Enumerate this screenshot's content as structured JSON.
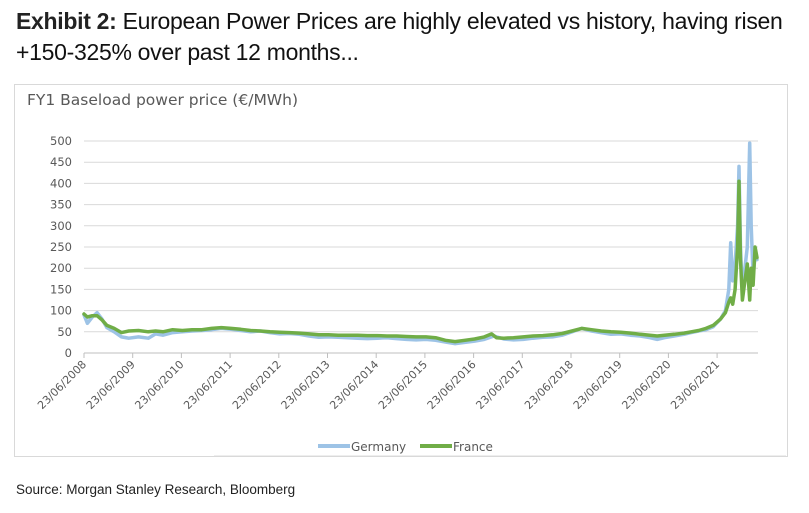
{
  "exhibit": {
    "label": "Exhibit 2:",
    "title": "European Power Prices are highly elevated vs history, having risen +150-325% over past 12 months..."
  },
  "source": "Source: Morgan Stanley Research, Bloomberg",
  "colors": {
    "germany": "#9dc3e6",
    "france": "#70ad47",
    "grid": "#d9d9d9",
    "text": "#595959"
  },
  "chart_data": {
    "type": "line",
    "title": "FY1 Baseload power price (€/MWh)",
    "xlabel": "",
    "ylabel": "",
    "ylim": [
      0,
      500
    ],
    "yticks": [
      0,
      50,
      100,
      150,
      200,
      250,
      300,
      350,
      400,
      450,
      500
    ],
    "xlim": [
      2008.48,
      2022.3
    ],
    "xticks": [
      {
        "x": 2008.48,
        "label": "23/06/2008"
      },
      {
        "x": 2009.48,
        "label": "23/06/2009"
      },
      {
        "x": 2010.48,
        "label": "23/06/2010"
      },
      {
        "x": 2011.48,
        "label": "23/06/2011"
      },
      {
        "x": 2012.48,
        "label": "23/06/2012"
      },
      {
        "x": 2013.48,
        "label": "23/06/2013"
      },
      {
        "x": 2014.48,
        "label": "23/06/2014"
      },
      {
        "x": 2015.48,
        "label": "23/06/2015"
      },
      {
        "x": 2016.48,
        "label": "23/06/2016"
      },
      {
        "x": 2017.48,
        "label": "23/06/2017"
      },
      {
        "x": 2018.48,
        "label": "23/06/2018"
      },
      {
        "x": 2019.48,
        "label": "23/06/2019"
      },
      {
        "x": 2020.48,
        "label": "23/06/2020"
      },
      {
        "x": 2021.48,
        "label": "23/06/2021"
      }
    ],
    "grid": true,
    "legend": "bottom",
    "series": [
      {
        "name": "Germany",
        "color": "#9dc3e6",
        "points": [
          [
            2008.48,
            90
          ],
          [
            2008.55,
            70
          ],
          [
            2008.65,
            85
          ],
          [
            2008.75,
            95
          ],
          [
            2008.85,
            80
          ],
          [
            2008.95,
            60
          ],
          [
            2009.1,
            50
          ],
          [
            2009.25,
            38
          ],
          [
            2009.4,
            35
          ],
          [
            2009.6,
            38
          ],
          [
            2009.8,
            35
          ],
          [
            2009.95,
            45
          ],
          [
            2010.1,
            42
          ],
          [
            2010.3,
            48
          ],
          [
            2010.5,
            50
          ],
          [
            2010.7,
            52
          ],
          [
            2010.9,
            53
          ],
          [
            2011.1,
            55
          ],
          [
            2011.3,
            58
          ],
          [
            2011.5,
            56
          ],
          [
            2011.7,
            53
          ],
          [
            2011.9,
            50
          ],
          [
            2012.1,
            52
          ],
          [
            2012.3,
            48
          ],
          [
            2012.5,
            45
          ],
          [
            2012.7,
            46
          ],
          [
            2012.9,
            44
          ],
          [
            2013.1,
            40
          ],
          [
            2013.3,
            37
          ],
          [
            2013.5,
            38
          ],
          [
            2013.7,
            37
          ],
          [
            2013.9,
            36
          ],
          [
            2014.1,
            35
          ],
          [
            2014.3,
            34
          ],
          [
            2014.5,
            35
          ],
          [
            2014.7,
            36
          ],
          [
            2014.9,
            34
          ],
          [
            2015.1,
            32
          ],
          [
            2015.3,
            31
          ],
          [
            2015.5,
            32
          ],
          [
            2015.7,
            30
          ],
          [
            2015.9,
            26
          ],
          [
            2016.1,
            22
          ],
          [
            2016.3,
            25
          ],
          [
            2016.5,
            28
          ],
          [
            2016.7,
            32
          ],
          [
            2016.9,
            40
          ],
          [
            2017.1,
            33
          ],
          [
            2017.3,
            31
          ],
          [
            2017.5,
            32
          ],
          [
            2017.7,
            35
          ],
          [
            2017.9,
            37
          ],
          [
            2018.1,
            38
          ],
          [
            2018.3,
            42
          ],
          [
            2018.5,
            50
          ],
          [
            2018.7,
            58
          ],
          [
            2018.9,
            52
          ],
          [
            2019.1,
            48
          ],
          [
            2019.3,
            44
          ],
          [
            2019.5,
            45
          ],
          [
            2019.7,
            42
          ],
          [
            2019.9,
            40
          ],
          [
            2020.1,
            36
          ],
          [
            2020.25,
            32
          ],
          [
            2020.4,
            36
          ],
          [
            2020.6,
            40
          ],
          [
            2020.8,
            44
          ],
          [
            2020.95,
            48
          ],
          [
            2021.1,
            52
          ],
          [
            2021.25,
            55
          ],
          [
            2021.4,
            62
          ],
          [
            2021.55,
            80
          ],
          [
            2021.65,
            100
          ],
          [
            2021.72,
            150
          ],
          [
            2021.76,
            260
          ],
          [
            2021.8,
            170
          ],
          [
            2021.85,
            210
          ],
          [
            2021.9,
            300
          ],
          [
            2021.93,
            440
          ],
          [
            2021.96,
            250
          ],
          [
            2022.0,
            140
          ],
          [
            2022.05,
            200
          ],
          [
            2022.1,
            250
          ],
          [
            2022.15,
            495
          ],
          [
            2022.18,
            300
          ],
          [
            2022.22,
            180
          ],
          [
            2022.26,
            230
          ],
          [
            2022.3,
            220
          ]
        ]
      },
      {
        "name": "France",
        "color": "#70ad47",
        "points": [
          [
            2008.48,
            92
          ],
          [
            2008.55,
            85
          ],
          [
            2008.65,
            88
          ],
          [
            2008.75,
            88
          ],
          [
            2008.85,
            78
          ],
          [
            2008.95,
            65
          ],
          [
            2009.1,
            58
          ],
          [
            2009.25,
            48
          ],
          [
            2009.4,
            52
          ],
          [
            2009.6,
            53
          ],
          [
            2009.8,
            50
          ],
          [
            2009.95,
            52
          ],
          [
            2010.1,
            50
          ],
          [
            2010.3,
            55
          ],
          [
            2010.5,
            53
          ],
          [
            2010.7,
            55
          ],
          [
            2010.9,
            55
          ],
          [
            2011.1,
            58
          ],
          [
            2011.3,
            60
          ],
          [
            2011.5,
            58
          ],
          [
            2011.7,
            56
          ],
          [
            2011.9,
            53
          ],
          [
            2012.1,
            52
          ],
          [
            2012.3,
            50
          ],
          [
            2012.5,
            49
          ],
          [
            2012.7,
            48
          ],
          [
            2012.9,
            47
          ],
          [
            2013.1,
            45
          ],
          [
            2013.3,
            43
          ],
          [
            2013.5,
            43
          ],
          [
            2013.7,
            42
          ],
          [
            2013.9,
            42
          ],
          [
            2014.1,
            42
          ],
          [
            2014.3,
            41
          ],
          [
            2014.5,
            41
          ],
          [
            2014.7,
            40
          ],
          [
            2014.9,
            40
          ],
          [
            2015.1,
            39
          ],
          [
            2015.3,
            38
          ],
          [
            2015.5,
            38
          ],
          [
            2015.7,
            36
          ],
          [
            2015.9,
            30
          ],
          [
            2016.1,
            27
          ],
          [
            2016.3,
            30
          ],
          [
            2016.5,
            33
          ],
          [
            2016.7,
            38
          ],
          [
            2016.85,
            45
          ],
          [
            2016.95,
            36
          ],
          [
            2017.1,
            35
          ],
          [
            2017.3,
            36
          ],
          [
            2017.5,
            38
          ],
          [
            2017.7,
            40
          ],
          [
            2017.9,
            41
          ],
          [
            2018.1,
            43
          ],
          [
            2018.3,
            46
          ],
          [
            2018.5,
            52
          ],
          [
            2018.7,
            58
          ],
          [
            2018.9,
            55
          ],
          [
            2019.1,
            52
          ],
          [
            2019.3,
            50
          ],
          [
            2019.5,
            49
          ],
          [
            2019.7,
            47
          ],
          [
            2019.9,
            44
          ],
          [
            2020.1,
            42
          ],
          [
            2020.25,
            40
          ],
          [
            2020.4,
            42
          ],
          [
            2020.6,
            44
          ],
          [
            2020.8,
            47
          ],
          [
            2020.95,
            50
          ],
          [
            2021.1,
            53
          ],
          [
            2021.25,
            58
          ],
          [
            2021.4,
            65
          ],
          [
            2021.55,
            80
          ],
          [
            2021.65,
            95
          ],
          [
            2021.72,
            120
          ],
          [
            2021.76,
            130
          ],
          [
            2021.8,
            115
          ],
          [
            2021.85,
            150
          ],
          [
            2021.9,
            250
          ],
          [
            2021.93,
            405
          ],
          [
            2021.96,
            220
          ],
          [
            2022.0,
            125
          ],
          [
            2022.05,
            170
          ],
          [
            2022.1,
            210
          ],
          [
            2022.15,
            125
          ],
          [
            2022.18,
            200
          ],
          [
            2022.22,
            160
          ],
          [
            2022.26,
            250
          ],
          [
            2022.3,
            225
          ]
        ]
      }
    ]
  }
}
